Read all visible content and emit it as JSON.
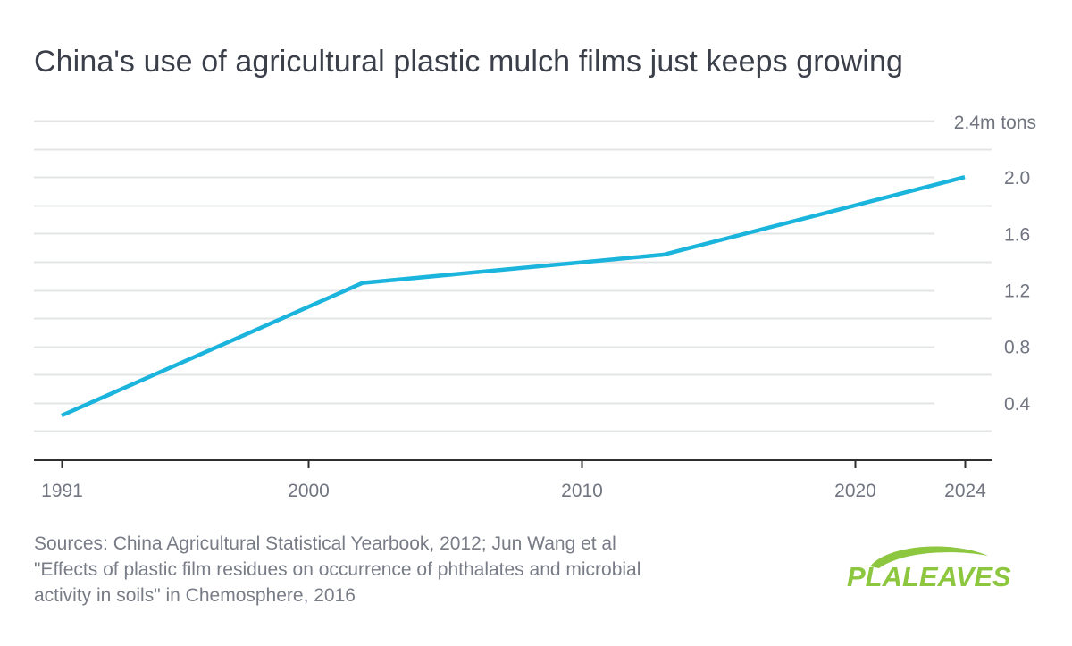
{
  "chart_data": {
    "type": "line",
    "title": "China's use of agricultural plastic mulch films just keeps growing",
    "y_unit_label": "2.4m tons",
    "x_ticks": [
      "1991",
      "2000",
      "2010",
      "2020",
      "2024"
    ],
    "y_ticks": [
      "0.4",
      "0.8",
      "1.2",
      "1.6",
      "2.0"
    ],
    "xlim": [
      1991,
      2024
    ],
    "ylim": [
      0,
      2.4
    ],
    "grid": true,
    "series": [
      {
        "x": [
          1991,
          2002,
          2013,
          2024
        ],
        "y": [
          0.31,
          1.25,
          1.45,
          2.0
        ],
        "color": "#1ab4dc"
      }
    ]
  },
  "source_lines": [
    "Sources: China Agricultural Statistical Yearbook, 2012; Jun Wang et al",
    "\"Effects of plastic film residues on occurrence of phthalates and microbial",
    "activity in soils\" in Chemosphere, 2016"
  ],
  "logo": {
    "text": "PLALEAVES",
    "color": "#8dc63f",
    "icon": "leaf-swoosh-icon"
  }
}
